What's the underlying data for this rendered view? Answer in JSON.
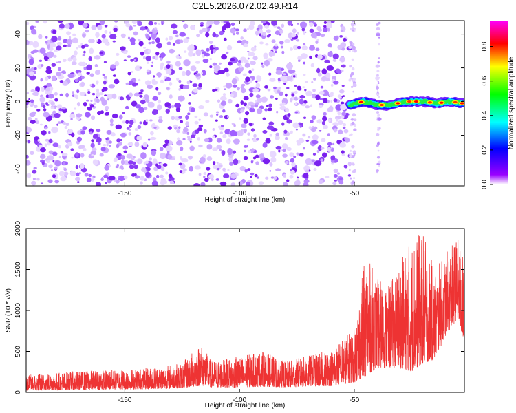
{
  "figure_title": "C2E5.2026.072.02.49.R14",
  "chart_data": [
    {
      "type": "heatmap",
      "title": "C2E5.2026.072.02.49.R14",
      "xlabel": "Height of straight line (km)",
      "ylabel": "Frequency (Hz)",
      "xlim": [
        -193,
        -2
      ],
      "ylim": [
        -50,
        48
      ],
      "x_ticks": [
        -150,
        -100,
        -50
      ],
      "x_tick_labels": [
        "-150",
        "-100",
        "-50"
      ],
      "y_ticks": [
        -40,
        -20,
        0,
        20,
        40
      ],
      "y_tick_labels": [
        "-40",
        "-20",
        "0",
        "20",
        "40"
      ],
      "noise_region_x": [
        -193,
        -52
      ],
      "sparse_column_x": [
        -40,
        -39
      ],
      "signal_band": {
        "description": "narrow high-amplitude band near 0 Hz",
        "x_range": [
          -52,
          -2
        ],
        "frequency_center": [
          {
            "x": -52,
            "y": -2
          },
          {
            "x": -46,
            "y": 0
          },
          {
            "x": -40,
            "y": -2
          },
          {
            "x": -34,
            "y": -2
          },
          {
            "x": -28,
            "y": 0
          },
          {
            "x": -20,
            "y": 0
          },
          {
            "x": -14,
            "y": -1
          },
          {
            "x": -8,
            "y": 0
          },
          {
            "x": -3,
            "y": -1
          }
        ],
        "peak_amplitude": 0.95
      },
      "colorbar": {
        "label": "Normalized spectral amplitude",
        "range": [
          0.0,
          0.95
        ],
        "ticks": [
          0.0,
          0.2,
          0.4,
          0.6,
          0.8
        ],
        "tick_labels": [
          "0.0",
          "0.2",
          "0.4",
          "0.6",
          "0.8"
        ],
        "colormap": [
          "#ffffff",
          "#8800ff",
          "#0000ff",
          "#00ffff",
          "#00ff00",
          "#ffff00",
          "#ff0000",
          "#ff00ff"
        ]
      }
    },
    {
      "type": "line",
      "xlabel": "Height of straight line (km)",
      "ylabel": "SNR (10 * v/v)",
      "xlim": [
        -193,
        -2
      ],
      "ylim": [
        0,
        2000
      ],
      "x_ticks": [
        -150,
        -100,
        -50
      ],
      "x_tick_labels": [
        "-150",
        "-100",
        "-50"
      ],
      "y_ticks": [
        0,
        500,
        1000,
        1500,
        2000
      ],
      "y_tick_labels": [
        "0",
        "500",
        "1000",
        "1500",
        "2000"
      ],
      "series": [
        {
          "name": "SNR",
          "color": "#ee3333",
          "envelope": [
            {
              "x": -193,
              "low": 20,
              "high": 220
            },
            {
              "x": -170,
              "low": 30,
              "high": 260
            },
            {
              "x": -140,
              "low": 40,
              "high": 300
            },
            {
              "x": -125,
              "low": 50,
              "high": 360
            },
            {
              "x": -117,
              "low": 80,
              "high": 600
            },
            {
              "x": -112,
              "low": 60,
              "high": 380
            },
            {
              "x": -100,
              "low": 60,
              "high": 440
            },
            {
              "x": -90,
              "low": 70,
              "high": 500
            },
            {
              "x": -80,
              "low": 60,
              "high": 380
            },
            {
              "x": -60,
              "low": 80,
              "high": 520
            },
            {
              "x": -50,
              "low": 120,
              "high": 800
            },
            {
              "x": -45,
              "low": 200,
              "high": 1700
            },
            {
              "x": -40,
              "low": 300,
              "high": 1400
            },
            {
              "x": -35,
              "low": 300,
              "high": 1300
            },
            {
              "x": -30,
              "low": 300,
              "high": 1600
            },
            {
              "x": -25,
              "low": 250,
              "high": 1900
            },
            {
              "x": -20,
              "low": 350,
              "high": 1950
            },
            {
              "x": -15,
              "low": 400,
              "high": 1500
            },
            {
              "x": -10,
              "low": 700,
              "high": 1700
            },
            {
              "x": -5,
              "low": 900,
              "high": 1900
            },
            {
              "x": -2,
              "low": 600,
              "high": 1600
            }
          ]
        }
      ]
    }
  ]
}
